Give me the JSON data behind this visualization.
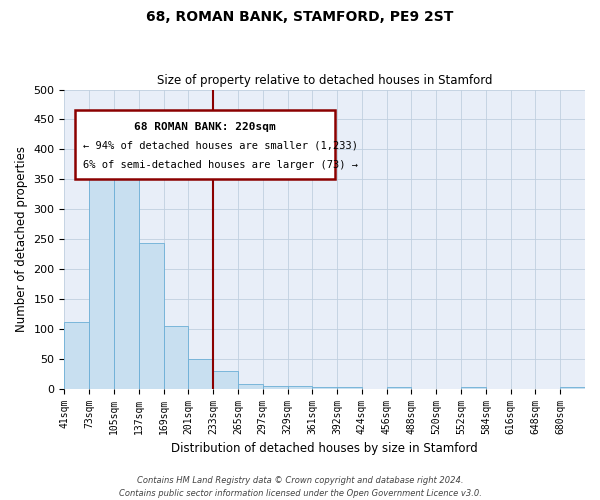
{
  "title": "68, ROMAN BANK, STAMFORD, PE9 2ST",
  "subtitle": "Size of property relative to detached houses in Stamford",
  "xlabel": "Distribution of detached houses by size in Stamford",
  "ylabel": "Number of detached properties",
  "bin_labels": [
    "41sqm",
    "73sqm",
    "105sqm",
    "137sqm",
    "169sqm",
    "201sqm",
    "233sqm",
    "265sqm",
    "297sqm",
    "329sqm",
    "361sqm",
    "392sqm",
    "424sqm",
    "456sqm",
    "488sqm",
    "520sqm",
    "552sqm",
    "584sqm",
    "616sqm",
    "648sqm",
    "680sqm"
  ],
  "bar_values": [
    112,
    393,
    360,
    243,
    105,
    50,
    30,
    8,
    5,
    5,
    3,
    3,
    0,
    3,
    0,
    0,
    2,
    0,
    0,
    0,
    2
  ],
  "bar_color": "#c8dff0",
  "bar_edge_color": "#6baed6",
  "vline_x": 6,
  "vline_color": "#8b0000",
  "ylim": [
    0,
    500
  ],
  "yticks": [
    0,
    50,
    100,
    150,
    200,
    250,
    300,
    350,
    400,
    450,
    500
  ],
  "annotation_title": "68 ROMAN BANK: 220sqm",
  "annotation_line1": "← 94% of detached houses are smaller (1,233)",
  "annotation_line2": "6% of semi-detached houses are larger (73) →",
  "annotation_box_color": "#8b0000",
  "footer_line1": "Contains HM Land Registry data © Crown copyright and database right 2024.",
  "footer_line2": "Contains public sector information licensed under the Open Government Licence v3.0.",
  "background_color": "#e8eef8",
  "grid_color": "#c0cfe0"
}
